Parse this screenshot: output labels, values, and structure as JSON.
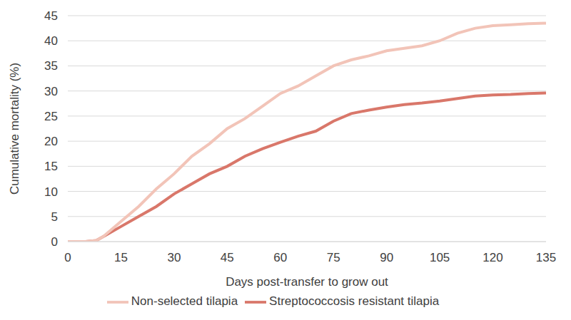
{
  "chart_data": {
    "type": "line",
    "x_label": "Days post-transfer to grow out",
    "y_label": "Cumulative mortality (%)",
    "x": [
      0,
      5,
      8,
      10,
      15,
      20,
      25,
      30,
      35,
      40,
      45,
      50,
      55,
      60,
      65,
      70,
      75,
      80,
      85,
      90,
      95,
      100,
      105,
      110,
      115,
      120,
      125,
      130,
      135
    ],
    "series": [
      {
        "name": "Streptococcosis resistant tilapia",
        "color": "#d9776a",
        "values": [
          0,
          0,
          0.2,
          1,
          3,
          5,
          7,
          9.5,
          11.5,
          13.5,
          15,
          17,
          18.5,
          19.8,
          21,
          22,
          24,
          25.5,
          26.2,
          26.8,
          27.3,
          27.6,
          28,
          28.5,
          29,
          29.2,
          29.3,
          29.5,
          29.6
        ]
      },
      {
        "name": "Non-selected tilapia",
        "color": "#f2c4b8",
        "values": [
          0,
          0,
          0.2,
          1,
          4,
          7,
          10.5,
          13.5,
          17,
          19.5,
          22.5,
          24.5,
          27,
          29.5,
          31,
          33,
          35,
          36.2,
          37,
          38,
          38.5,
          39,
          40,
          41.5,
          42.5,
          43,
          43.2,
          43.4,
          43.5
        ]
      }
    ],
    "xlim": [
      0,
      135
    ],
    "xticks": [
      0,
      15,
      30,
      45,
      60,
      75,
      90,
      105,
      120,
      135
    ],
    "ylim": [
      0,
      45
    ],
    "yticks": [
      0,
      5,
      10,
      15,
      20,
      25,
      30,
      35,
      40,
      45
    ],
    "grid": true,
    "legend": "bottom"
  }
}
